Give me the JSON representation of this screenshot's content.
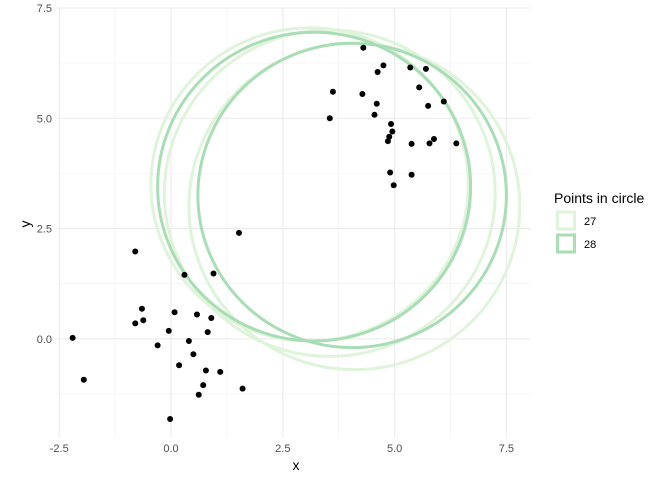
{
  "chart_data": {
    "type": "scatter",
    "title": "",
    "xlabel": "x",
    "ylabel": "y",
    "xlim": [
      -2.55,
      8.05
    ],
    "ylim": [
      -2.25,
      7.5
    ],
    "x_ticks": [
      -2.5,
      0.0,
      2.5,
      5.0,
      7.5
    ],
    "x_tick_labels": [
      "-2.5",
      "0.0",
      "2.5",
      "5.0",
      "7.5"
    ],
    "y_ticks": [
      0.0,
      2.5,
      5.0,
      7.5
    ],
    "y_tick_labels": [
      "0.0",
      "2.5",
      "5.0",
      "7.5"
    ],
    "grid": true,
    "legend": {
      "title": "Points in circle",
      "placement": "right",
      "entries": [
        {
          "label": "27",
          "color": "#e0f3db"
        },
        {
          "label": "28",
          "color": "#a8ddb5"
        }
      ]
    },
    "points": {
      "color": "#000000",
      "x": [
        -2.2,
        -1.95,
        -0.8,
        -0.8,
        -0.65,
        -0.62,
        -0.3,
        -0.05,
        -0.02,
        0.08,
        0.18,
        0.3,
        0.4,
        0.5,
        0.58,
        0.62,
        0.72,
        0.78,
        0.82,
        0.9,
        0.95,
        1.1,
        1.52,
        1.6,
        3.55,
        3.62,
        4.28,
        4.3,
        4.55,
        4.6,
        4.62,
        4.75,
        4.85,
        4.88,
        4.9,
        4.92,
        4.95,
        4.98,
        5.35,
        5.38,
        5.38,
        5.55,
        5.7,
        5.75,
        5.78,
        5.88,
        6.1,
        6.38
      ],
      "y": [
        0.02,
        -0.93,
        1.98,
        0.35,
        0.68,
        0.42,
        -0.15,
        0.18,
        -1.82,
        0.6,
        -0.6,
        1.45,
        -0.05,
        -0.35,
        0.55,
        -1.27,
        -1.05,
        -0.72,
        0.15,
        0.47,
        1.48,
        -0.75,
        2.4,
        -1.13,
        5.0,
        5.6,
        5.55,
        6.6,
        5.08,
        5.33,
        6.05,
        6.2,
        4.48,
        4.58,
        3.77,
        4.87,
        4.7,
        3.48,
        6.15,
        3.72,
        4.42,
        5.7,
        6.12,
        5.28,
        4.43,
        4.53,
        5.38,
        4.43
      ]
    },
    "circles": [
      {
        "cx": 3.1,
        "cy": 3.5,
        "r": 3.55,
        "group": "27"
      },
      {
        "cx": 3.55,
        "cy": 3.3,
        "r": 3.7,
        "group": "27"
      },
      {
        "cx": 4.1,
        "cy": 3.0,
        "r": 3.7,
        "group": "27"
      },
      {
        "cx": 3.2,
        "cy": 3.45,
        "r": 3.5,
        "group": "28"
      },
      {
        "cx": 4.05,
        "cy": 3.25,
        "r": 3.45,
        "group": "28"
      }
    ]
  }
}
